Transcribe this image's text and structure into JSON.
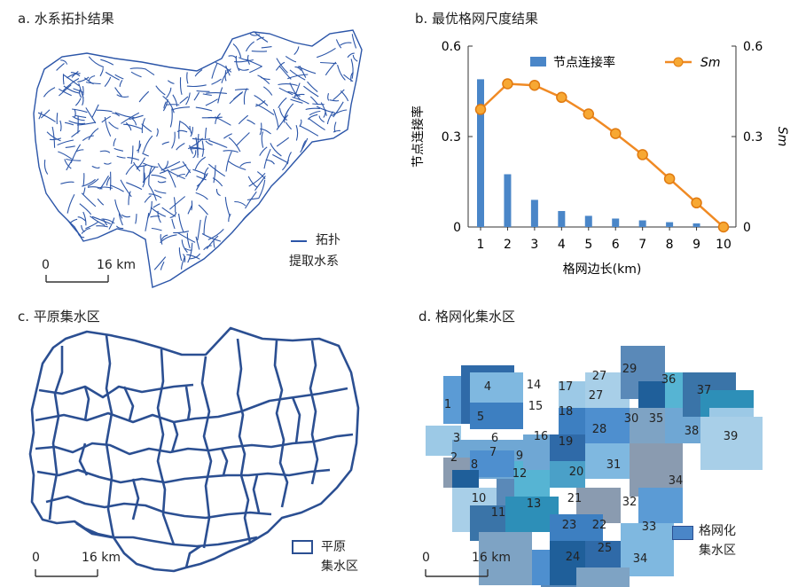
{
  "panels": {
    "a": {
      "title": "a. 水系拓扑结果",
      "legend_line1": "拓扑",
      "legend_line2": "提取水系",
      "scale_zero": "0",
      "scale_end": "16 km"
    },
    "b": {
      "title": "b. 最优格网尺度结果"
    },
    "c": {
      "title": "c. 平原集水区",
      "legend_line1": "平原",
      "legend_line2": "集水区",
      "scale_zero": "0",
      "scale_end": "16 km"
    },
    "d": {
      "title": "d. 格网化集水区",
      "legend_line1": "格网化",
      "legend_line2": "集水区",
      "scale_zero": "0",
      "scale_end": "16 km",
      "zone_labels": [
        "1",
        "2",
        "3",
        "4",
        "5",
        "6",
        "7",
        "8",
        "9",
        "10",
        "11",
        "12",
        "13",
        "14",
        "15",
        "16",
        "17",
        "18",
        "19",
        "20",
        "21",
        "22",
        "23",
        "24",
        "25",
        "27",
        "27",
        "28",
        "29",
        "30",
        "31",
        "32",
        "33",
        "34",
        "34",
        "35",
        "36",
        "37",
        "38",
        "39"
      ]
    }
  },
  "colors": {
    "river": "#2b55a8",
    "basin": "#2b4f92",
    "bar": "#4a86c8",
    "line": "#f08a24",
    "marker_fill": "#f7a833",
    "marker_edge": "#e07a10"
  },
  "chart_data": {
    "type": "bar+line",
    "xlabel": "格网边长(km)",
    "ylabel_left": "节点连接率",
    "ylabel_right": "Sm",
    "x": [
      1,
      2,
      3,
      4,
      5,
      6,
      7,
      8,
      9,
      10
    ],
    "ylim_left": [
      0,
      0.6
    ],
    "ylim_right": [
      0,
      0.6
    ],
    "yticks_left": [
      "0",
      "0.3",
      "0.6"
    ],
    "yticks_right": [
      "0",
      "0.3",
      "0.6"
    ],
    "series": [
      {
        "name": "节点连接率",
        "kind": "bar",
        "axis": "left",
        "values": [
          0.49,
          0.175,
          0.09,
          0.053,
          0.037,
          0.028,
          0.022,
          0.016,
          0.012,
          0.0
        ]
      },
      {
        "name": "Sm",
        "kind": "line",
        "axis": "right",
        "values": [
          0.39,
          0.475,
          0.47,
          0.43,
          0.375,
          0.31,
          0.24,
          0.16,
          0.08,
          0.0
        ]
      }
    ],
    "legend_position": "top"
  }
}
